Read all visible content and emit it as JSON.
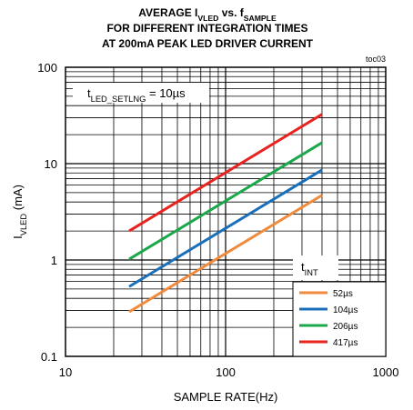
{
  "chart_data": {
    "type": "line",
    "title_lines": [
      {
        "parts": [
          {
            "t": "AVERAGE I"
          },
          {
            "t": "VLED",
            "sub": true
          },
          {
            "t": " vs. f"
          },
          {
            "t": "SAMPLE",
            "sub": true
          }
        ]
      },
      {
        "parts": [
          {
            "t": "FOR DIFFERENT INTEGRATION TIMES"
          }
        ]
      },
      {
        "parts": [
          {
            "t": "AT 200mA PEAK LED DRIVER CURRENT"
          }
        ]
      }
    ],
    "tag": "toc03",
    "xlabel": "SAMPLE RATE(Hz)",
    "ylabel_parts": [
      {
        "t": "I"
      },
      {
        "t": "VLED",
        "sub": true
      },
      {
        "t": " (mA)"
      }
    ],
    "x_scale": "log",
    "y_scale": "log",
    "xlim": [
      10,
      1000
    ],
    "ylim": [
      0.1,
      100
    ],
    "x_ticks": [
      {
        "v": 10,
        "label": "10"
      },
      {
        "v": 100,
        "label": "100"
      },
      {
        "v": 1000,
        "label": "1000"
      }
    ],
    "y_ticks": [
      {
        "v": 0.1,
        "label": "0.1"
      },
      {
        "v": 1,
        "label": "1"
      },
      {
        "v": 10,
        "label": "10"
      },
      {
        "v": 100,
        "label": "100"
      }
    ],
    "grid": true,
    "annotation_parts": [
      {
        "t": "t"
      },
      {
        "t": "LED_SETLNG",
        "sub": true
      },
      {
        "t": " = 10µs"
      }
    ],
    "legend_title_parts": [
      {
        "t": "t"
      },
      {
        "t": "INT",
        "sub": true
      }
    ],
    "legend_position": "bottom-right",
    "series": [
      {
        "name": "52µs",
        "color": "#f08a3c",
        "x": [
          25,
          400
        ],
        "y": [
          0.29,
          4.7
        ]
      },
      {
        "name": "104µs",
        "color": "#1a6fba",
        "x": [
          25,
          400
        ],
        "y": [
          0.53,
          8.6
        ]
      },
      {
        "name": "206µs",
        "color": "#1aa84a",
        "x": [
          25,
          400
        ],
        "y": [
          1.02,
          16.5
        ]
      },
      {
        "name": "417µs",
        "color": "#e8231f",
        "x": [
          25,
          400
        ],
        "y": [
          2.0,
          32.5
        ]
      }
    ]
  }
}
